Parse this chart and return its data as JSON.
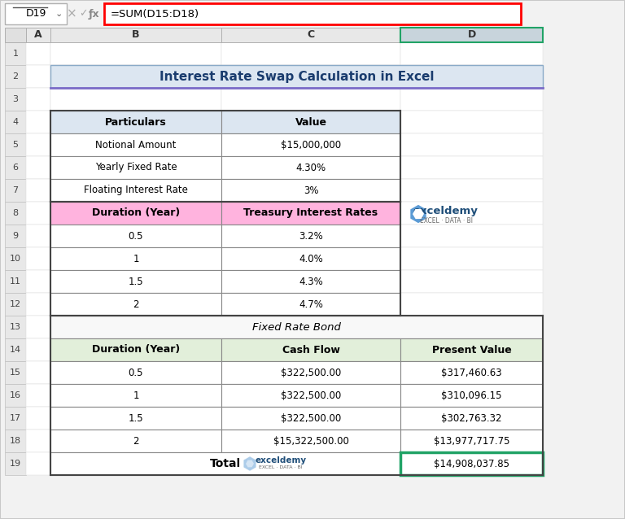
{
  "title": "Interest Rate Swap Calculation in Excel",
  "formula_bar_text": "=SUM(D15:D18)",
  "cell_ref": "D19",
  "col_headers": [
    "A",
    "B",
    "C",
    "D"
  ],
  "top_table": {
    "headers": [
      "Particulars",
      "Value"
    ],
    "rows": [
      [
        "Notional Amount",
        "$15,000,000"
      ],
      [
        "Yearly Fixed Rate",
        "4.30%"
      ],
      [
        "Floating Interest Rate",
        "3%"
      ]
    ],
    "header_bg": "#dce6f1",
    "row_bg": "#ffffff"
  },
  "mid_table": {
    "headers": [
      "Duration (Year)",
      "Treasury Interest Rates"
    ],
    "rows": [
      [
        "0.5",
        "3.2%"
      ],
      [
        "1",
        "4.0%"
      ],
      [
        "1.5",
        "4.3%"
      ],
      [
        "2",
        "4.7%"
      ]
    ],
    "header_bg": "#ffb3de",
    "row_bg": "#ffffff"
  },
  "section_label": "Fixed Rate Bond",
  "bottom_table": {
    "headers": [
      "Duration (Year)",
      "Cash Flow",
      "Present Value"
    ],
    "rows": [
      [
        "0.5",
        "$322,500.00",
        "$317,460.63"
      ],
      [
        "1",
        "$322,500.00",
        "$310,096.15"
      ],
      [
        "1.5",
        "$322,500.00",
        "$302,763.32"
      ],
      [
        "2",
        "$15,322,500.00",
        "$13,977,717.75"
      ]
    ],
    "total_row": [
      "",
      "Total",
      "$14,908,037.85"
    ],
    "header_bg": "#e2efda",
    "row_bg": "#ffffff",
    "total_bg": "#ffffff"
  },
  "bg_color": "#f0f0f0",
  "sheet_bg": "#ffffff",
  "title_bg": "#dce6f1",
  "formula_bar_border": "#ff0000",
  "active_cell_border": "#21a366",
  "wm_icon_color": "#5b9bd5",
  "wm_text_color": "#1f4e79",
  "wm_sub_color": "#666666"
}
